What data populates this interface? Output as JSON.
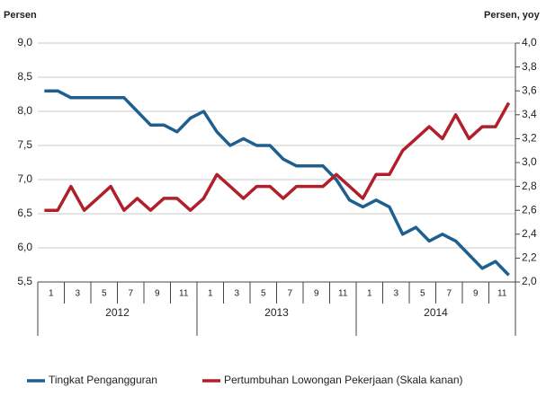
{
  "chart_data": {
    "type": "line",
    "y_label": "Persen",
    "y2_label": "Persen, yoy",
    "categories": [
      "1",
      null,
      "3",
      null,
      "5",
      null,
      "7",
      null,
      "9",
      null,
      "11",
      null,
      "1",
      null,
      "3",
      null,
      "5",
      null,
      "7",
      null,
      "9",
      null,
      "11",
      null,
      "1",
      null,
      "3",
      null,
      "5",
      null,
      "7",
      null,
      "9",
      null,
      "11",
      null
    ],
    "year_groups": [
      "2012",
      "2013",
      "2014"
    ],
    "series": [
      {
        "name": "Tingkat Pengangguran",
        "color": "#1f5f8f",
        "values": [
          8.3,
          8.3,
          8.2,
          8.2,
          8.2,
          8.2,
          8.2,
          8.0,
          7.8,
          7.8,
          7.7,
          7.9,
          8.0,
          7.7,
          7.5,
          7.6,
          7.5,
          7.5,
          7.3,
          7.2,
          7.2,
          7.2,
          7.0,
          6.7,
          6.6,
          6.7,
          6.6,
          6.2,
          6.3,
          6.1,
          6.2,
          6.1,
          5.9,
          5.7,
          5.8,
          5.6
        ]
      },
      {
        "name": "Pertumbuhan Lowongan Pekerjaan (Skala kanan)",
        "color": "#b0202a",
        "axis": "y2",
        "values": [
          2.6,
          2.6,
          2.8,
          2.6,
          2.7,
          2.8,
          2.6,
          2.7,
          2.6,
          2.7,
          2.7,
          2.6,
          2.7,
          2.9,
          2.8,
          2.7,
          2.8,
          2.8,
          2.7,
          2.8,
          2.8,
          2.8,
          2.9,
          2.8,
          2.7,
          2.9,
          2.9,
          3.1,
          3.2,
          3.3,
          3.2,
          3.4,
          3.2,
          3.3,
          3.3,
          3.5
        ]
      }
    ],
    "ylim": [
      5.5,
      9.0
    ],
    "yticks": [
      {
        "value": 5.5,
        "label": "5,5"
      },
      {
        "value": 6.0,
        "label": "6,0"
      },
      {
        "value": 6.5,
        "label": "6,5"
      },
      {
        "value": 7.0,
        "label": "7,0"
      },
      {
        "value": 7.5,
        "label": "7,5"
      },
      {
        "value": 8.0,
        "label": "8,0"
      },
      {
        "value": 8.5,
        "label": "8,5"
      },
      {
        "value": 9.0,
        "label": "9,0"
      }
    ],
    "y2lim": [
      2.0,
      4.0
    ],
    "y2ticks": [
      {
        "value": 2.0,
        "label": "2,0"
      },
      {
        "value": 2.2,
        "label": "2,2"
      },
      {
        "value": 2.4,
        "label": "2,4"
      },
      {
        "value": 2.6,
        "label": "2,6"
      },
      {
        "value": 2.8,
        "label": "2,8"
      },
      {
        "value": 3.0,
        "label": "3,0"
      },
      {
        "value": 3.2,
        "label": "3,2"
      },
      {
        "value": 3.4,
        "label": "3,4"
      },
      {
        "value": 3.6,
        "label": "3,6"
      },
      {
        "value": 3.8,
        "label": "3,8"
      },
      {
        "value": 4.0,
        "label": "4,0"
      }
    ],
    "grid": true
  }
}
